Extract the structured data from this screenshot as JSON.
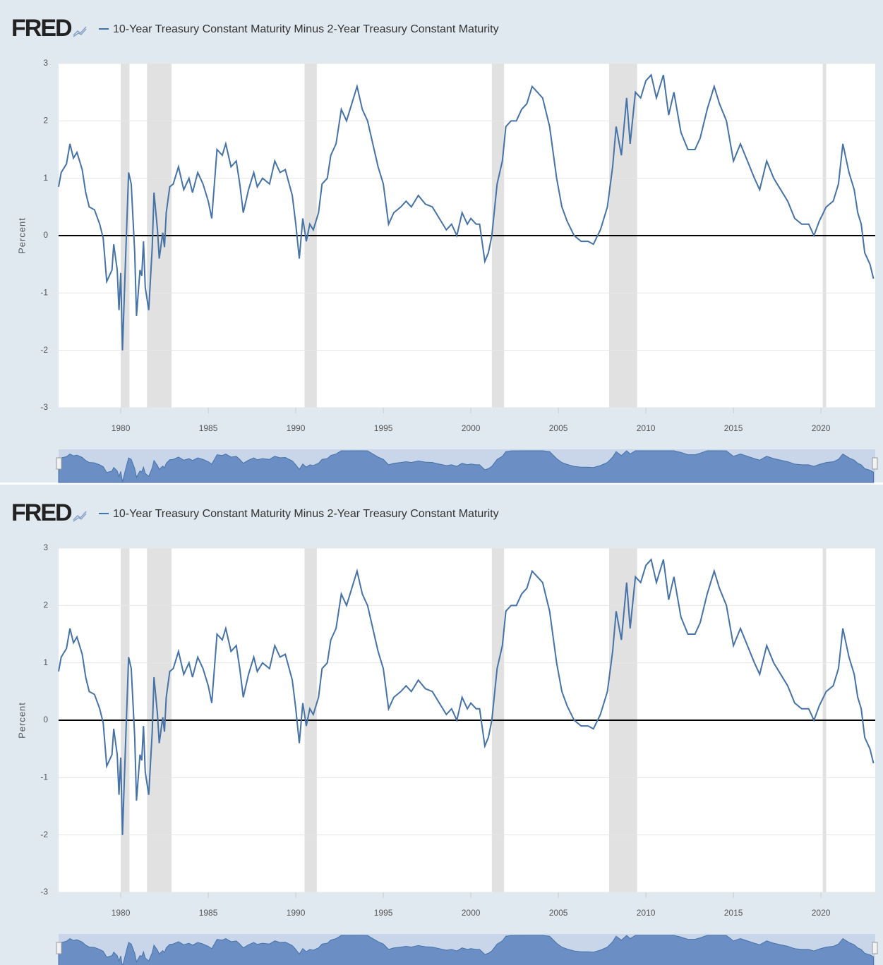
{
  "chart_data": [
    {
      "type": "line",
      "logo": "FRED",
      "title": "10-Year Treasury Constant Maturity Minus 2-Year Treasury Constant Maturity",
      "y_label": "Percent",
      "x": [
        1976.45,
        1976.6,
        1976.9,
        1977.1,
        1977.3,
        1977.5,
        1977.8,
        1978.0,
        1978.2,
        1978.5,
        1978.8,
        1979.0,
        1979.2,
        1979.5,
        1979.6,
        1979.8,
        1979.9,
        1980.0,
        1980.1,
        1980.3,
        1980.45,
        1980.6,
        1980.8,
        1980.9,
        1981.1,
        1981.2,
        1981.3,
        1981.4,
        1981.6,
        1981.8,
        1981.9,
        1982.1,
        1982.2,
        1982.4,
        1982.5,
        1982.6,
        1982.8,
        1983.0,
        1983.3,
        1983.6,
        1983.9,
        1984.1,
        1984.4,
        1984.7,
        1985.0,
        1985.2,
        1985.5,
        1985.8,
        1986.0,
        1986.3,
        1986.6,
        1986.8,
        1987.0,
        1987.3,
        1987.6,
        1987.8,
        1988.1,
        1988.5,
        1988.8,
        1989.1,
        1989.4,
        1989.8,
        1990.0,
        1990.2,
        1990.4,
        1990.6,
        1990.8,
        1991.0,
        1991.3,
        1991.5,
        1991.8,
        1992.0,
        1992.3,
        1992.6,
        1992.9,
        1993.2,
        1993.5,
        1993.8,
        1994.1,
        1994.4,
        1994.7,
        1995.0,
        1995.3,
        1995.6,
        1996.0,
        1996.3,
        1996.6,
        1997.0,
        1997.4,
        1997.8,
        1998.2,
        1998.6,
        1998.9,
        1999.2,
        1999.5,
        1999.8,
        2000.0,
        2000.3,
        2000.5,
        2000.8,
        2001.0,
        2001.2,
        2001.5,
        2001.8,
        2002.0,
        2002.3,
        2002.6,
        2002.9,
        2003.2,
        2003.5,
        2003.8,
        2004.1,
        2004.5,
        2004.9,
        2005.2,
        2005.5,
        2005.9,
        2006.3,
        2006.7,
        2007.0,
        2007.4,
        2007.8,
        2008.1,
        2008.3,
        2008.6,
        2008.9,
        2009.1,
        2009.4,
        2009.7,
        2010.0,
        2010.3,
        2010.6,
        2011.0,
        2011.3,
        2011.6,
        2012.0,
        2012.4,
        2012.8,
        2013.1,
        2013.5,
        2013.9,
        2014.2,
        2014.6,
        2015.0,
        2015.4,
        2015.8,
        2016.2,
        2016.5,
        2016.9,
        2017.3,
        2017.7,
        2018.1,
        2018.5,
        2018.9,
        2019.3,
        2019.6,
        2019.9,
        2020.3,
        2020.7,
        2021.0,
        2021.25,
        2021.6,
        2021.9,
        2022.1,
        2022.3,
        2022.5,
        2022.8,
        2023.0
      ],
      "series": [
        {
          "name": "10-Year Treasury Constant Maturity Minus 2-Year Treasury Constant Maturity",
          "color": "#4572a7",
          "values": [
            0.85,
            1.1,
            1.25,
            1.6,
            1.35,
            1.45,
            1.15,
            0.75,
            0.5,
            0.45,
            0.2,
            -0.05,
            -0.8,
            -0.6,
            -0.15,
            -0.6,
            -1.3,
            -0.65,
            -2.0,
            -0.2,
            1.1,
            0.9,
            -0.3,
            -1.4,
            -0.6,
            -0.7,
            -0.1,
            -0.9,
            -1.3,
            -0.2,
            0.75,
            0.1,
            -0.4,
            0.05,
            -0.2,
            0.4,
            0.85,
            0.9,
            1.2,
            0.8,
            1.0,
            0.75,
            1.1,
            0.9,
            0.6,
            0.3,
            1.5,
            1.4,
            1.6,
            1.2,
            1.3,
            0.9,
            0.4,
            0.8,
            1.1,
            0.85,
            1.0,
            0.9,
            1.3,
            1.1,
            1.15,
            0.7,
            0.2,
            -0.4,
            0.3,
            -0.1,
            0.2,
            0.1,
            0.4,
            0.9,
            1.0,
            1.4,
            1.6,
            2.2,
            2.0,
            2.3,
            2.6,
            2.2,
            2.0,
            1.6,
            1.2,
            0.9,
            0.2,
            0.4,
            0.5,
            0.6,
            0.5,
            0.7,
            0.55,
            0.5,
            0.3,
            0.1,
            0.2,
            0.0,
            0.4,
            0.2,
            0.3,
            0.2,
            0.2,
            -0.45,
            -0.3,
            0.0,
            0.9,
            1.3,
            1.9,
            2.0,
            2.0,
            2.2,
            2.3,
            2.6,
            2.5,
            2.4,
            1.9,
            1.0,
            0.5,
            0.25,
            0.0,
            -0.1,
            -0.1,
            -0.15,
            0.1,
            0.5,
            1.2,
            1.9,
            1.4,
            2.4,
            1.6,
            2.5,
            2.4,
            2.7,
            2.8,
            2.4,
            2.8,
            2.1,
            2.5,
            1.8,
            1.5,
            1.5,
            1.7,
            2.2,
            2.6,
            2.3,
            2.0,
            1.3,
            1.6,
            1.3,
            1.0,
            0.8,
            1.3,
            1.0,
            0.8,
            0.6,
            0.3,
            0.2,
            0.2,
            0.0,
            0.25,
            0.5,
            0.6,
            0.9,
            1.6,
            1.1,
            0.8,
            0.4,
            0.2,
            -0.3,
            -0.5,
            -0.75
          ]
        }
      ],
      "recessions": [
        [
          1980.0,
          1980.5
        ],
        [
          1981.5,
          1982.9
        ],
        [
          1990.5,
          1991.2
        ],
        [
          2001.2,
          2001.9
        ],
        [
          2007.9,
          2009.5
        ],
        [
          2020.1,
          2020.3
        ]
      ],
      "recession_color": "#e1e1e1",
      "xlim": [
        1976.45,
        2023.1
      ],
      "xticks": [
        1980,
        1985,
        1990,
        1995,
        2000,
        2005,
        2010,
        2015,
        2020
      ],
      "ylim": [
        -3,
        3
      ],
      "yticks": [
        -3,
        -2,
        -1,
        0,
        1,
        2,
        3
      ],
      "grid": true
    },
    {
      "type": "line",
      "logo": "FRED",
      "title": "10-Year Treasury Constant Maturity Minus 2-Year Treasury Constant Maturity",
      "y_label": "Percent",
      "x": [
        1976.45,
        1976.6,
        1976.9,
        1977.1,
        1977.3,
        1977.5,
        1977.8,
        1978.0,
        1978.2,
        1978.5,
        1978.8,
        1979.0,
        1979.2,
        1979.5,
        1979.6,
        1979.8,
        1979.9,
        1980.0,
        1980.1,
        1980.3,
        1980.45,
        1980.6,
        1980.8,
        1980.9,
        1981.1,
        1981.2,
        1981.3,
        1981.4,
        1981.6,
        1981.8,
        1981.9,
        1982.1,
        1982.2,
        1982.4,
        1982.5,
        1982.6,
        1982.8,
        1983.0,
        1983.3,
        1983.6,
        1983.9,
        1984.1,
        1984.4,
        1984.7,
        1985.0,
        1985.2,
        1985.5,
        1985.8,
        1986.0,
        1986.3,
        1986.6,
        1986.8,
        1987.0,
        1987.3,
        1987.6,
        1987.8,
        1988.1,
        1988.5,
        1988.8,
        1989.1,
        1989.4,
        1989.8,
        1990.0,
        1990.2,
        1990.4,
        1990.6,
        1990.8,
        1991.0,
        1991.3,
        1991.5,
        1991.8,
        1992.0,
        1992.3,
        1992.6,
        1992.9,
        1993.2,
        1993.5,
        1993.8,
        1994.1,
        1994.4,
        1994.7,
        1995.0,
        1995.3,
        1995.6,
        1996.0,
        1996.3,
        1996.6,
        1997.0,
        1997.4,
        1997.8,
        1998.2,
        1998.6,
        1998.9,
        1999.2,
        1999.5,
        1999.8,
        2000.0,
        2000.3,
        2000.5,
        2000.8,
        2001.0,
        2001.2,
        2001.5,
        2001.8,
        2002.0,
        2002.3,
        2002.6,
        2002.9,
        2003.2,
        2003.5,
        2003.8,
        2004.1,
        2004.5,
        2004.9,
        2005.2,
        2005.5,
        2005.9,
        2006.3,
        2006.7,
        2007.0,
        2007.4,
        2007.8,
        2008.1,
        2008.3,
        2008.6,
        2008.9,
        2009.1,
        2009.4,
        2009.7,
        2010.0,
        2010.3,
        2010.6,
        2011.0,
        2011.3,
        2011.6,
        2012.0,
        2012.4,
        2012.8,
        2013.1,
        2013.5,
        2013.9,
        2014.2,
        2014.6,
        2015.0,
        2015.4,
        2015.8,
        2016.2,
        2016.5,
        2016.9,
        2017.3,
        2017.7,
        2018.1,
        2018.5,
        2018.9,
        2019.3,
        2019.6,
        2019.9,
        2020.3,
        2020.7,
        2021.0,
        2021.25,
        2021.6,
        2021.9,
        2022.1,
        2022.3,
        2022.5,
        2022.8,
        2023.0
      ],
      "series": [
        {
          "name": "10-Year Treasury Constant Maturity Minus 2-Year Treasury Constant Maturity",
          "color": "#4572a7",
          "values": [
            0.85,
            1.1,
            1.25,
            1.6,
            1.35,
            1.45,
            1.15,
            0.75,
            0.5,
            0.45,
            0.2,
            -0.05,
            -0.8,
            -0.6,
            -0.15,
            -0.6,
            -1.3,
            -0.65,
            -2.0,
            -0.2,
            1.1,
            0.9,
            -0.3,
            -1.4,
            -0.6,
            -0.7,
            -0.1,
            -0.9,
            -1.3,
            -0.2,
            0.75,
            0.1,
            -0.4,
            0.05,
            -0.2,
            0.4,
            0.85,
            0.9,
            1.2,
            0.8,
            1.0,
            0.75,
            1.1,
            0.9,
            0.6,
            0.3,
            1.5,
            1.4,
            1.6,
            1.2,
            1.3,
            0.9,
            0.4,
            0.8,
            1.1,
            0.85,
            1.0,
            0.9,
            1.3,
            1.1,
            1.15,
            0.7,
            0.2,
            -0.4,
            0.3,
            -0.1,
            0.2,
            0.1,
            0.4,
            0.9,
            1.0,
            1.4,
            1.6,
            2.2,
            2.0,
            2.3,
            2.6,
            2.2,
            2.0,
            1.6,
            1.2,
            0.9,
            0.2,
            0.4,
            0.5,
            0.6,
            0.5,
            0.7,
            0.55,
            0.5,
            0.3,
            0.1,
            0.2,
            0.0,
            0.4,
            0.2,
            0.3,
            0.2,
            0.2,
            -0.45,
            -0.3,
            0.0,
            0.9,
            1.3,
            1.9,
            2.0,
            2.0,
            2.2,
            2.3,
            2.6,
            2.5,
            2.4,
            1.9,
            1.0,
            0.5,
            0.25,
            0.0,
            -0.1,
            -0.1,
            -0.15,
            0.1,
            0.5,
            1.2,
            1.9,
            1.4,
            2.4,
            1.6,
            2.5,
            2.4,
            2.7,
            2.8,
            2.4,
            2.8,
            2.1,
            2.5,
            1.8,
            1.5,
            1.5,
            1.7,
            2.2,
            2.6,
            2.3,
            2.0,
            1.3,
            1.6,
            1.3,
            1.0,
            0.8,
            1.3,
            1.0,
            0.8,
            0.6,
            0.3,
            0.2,
            0.2,
            0.0,
            0.25,
            0.5,
            0.6,
            0.9,
            1.6,
            1.1,
            0.8,
            0.4,
            0.2,
            -0.3,
            -0.5,
            -0.75
          ]
        }
      ],
      "recessions": [
        [
          1980.0,
          1980.5
        ],
        [
          1981.5,
          1982.9
        ],
        [
          1990.5,
          1991.2
        ],
        [
          2001.2,
          2001.9
        ],
        [
          2007.9,
          2009.5
        ],
        [
          2020.1,
          2020.3
        ]
      ],
      "recession_color": "#e1e1e1",
      "xlim": [
        1976.45,
        2023.1
      ],
      "xticks": [
        1980,
        1985,
        1990,
        1995,
        2000,
        2005,
        2010,
        2015,
        2020
      ],
      "ylim": [
        -3,
        3
      ],
      "yticks": [
        -3,
        -2,
        -1,
        0,
        1,
        2,
        3
      ],
      "grid": true
    }
  ]
}
